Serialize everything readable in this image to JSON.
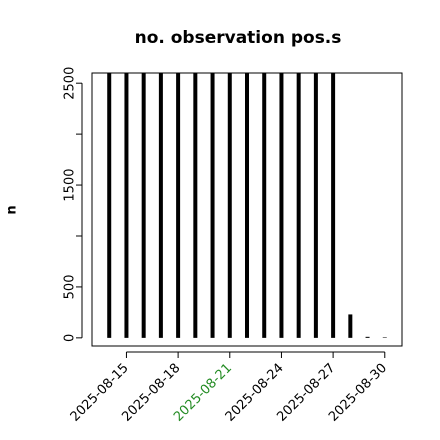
{
  "chart_data": {
    "type": "bar-h",
    "title": "no. observation pos.s",
    "ylabel": "n",
    "x": [
      "2025-08-14",
      "2025-08-15",
      "2025-08-16",
      "2025-08-17",
      "2025-08-18",
      "2025-08-19",
      "2025-08-20",
      "2025-08-21",
      "2025-08-22",
      "2025-08-23",
      "2025-08-24",
      "2025-08-25",
      "2025-08-26",
      "2025-08-27",
      "2025-08-28",
      "2025-08-29",
      "2025-08-30"
    ],
    "values": [
      2600,
      2600,
      2600,
      2600,
      2600,
      2600,
      2600,
      2600,
      2600,
      2600,
      2600,
      2600,
      2600,
      2600,
      230,
      10,
      5
    ],
    "color": "#000000",
    "xlim": [
      "2025-08-13",
      "2025-08-31"
    ],
    "xticks": [
      "2025-08-15",
      "2025-08-18",
      "2025-08-21",
      "2025-08-24",
      "2025-08-27",
      "2025-08-30"
    ],
    "highlight_xtick": "2025-08-21",
    "highlight_color": "#228b22",
    "ylim": [
      -80,
      2600
    ],
    "yticks": [
      0,
      500,
      1500,
      2500
    ],
    "yticks_unlabeled": [
      1000,
      2000
    ]
  }
}
